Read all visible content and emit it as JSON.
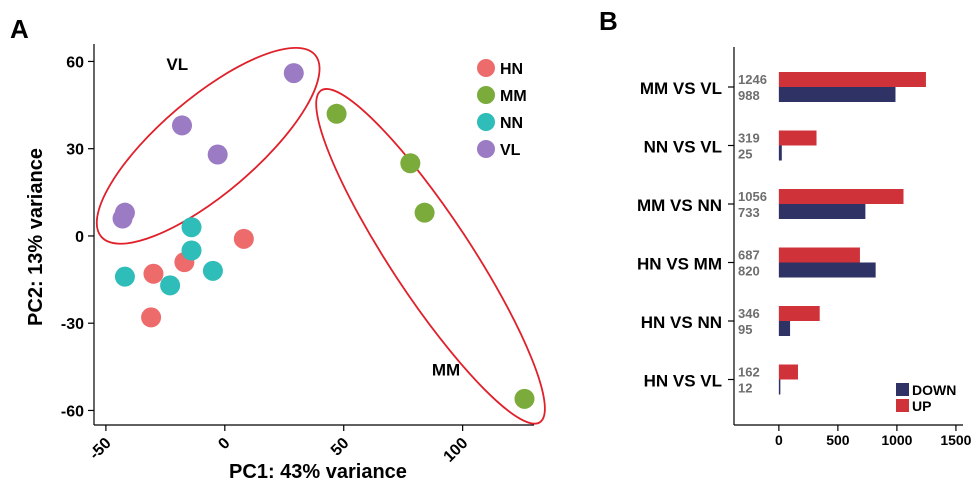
{
  "chart_data": [
    {
      "panel_label": "A",
      "type": "scatter",
      "xlabel": "PC1: 43% variance",
      "ylabel": "PC2: 13% variance",
      "xlim": [
        -55,
        130
      ],
      "ylim": [
        -65,
        66
      ],
      "xticks": [
        -50,
        0,
        50,
        100
      ],
      "yticks": [
        60,
        30,
        0,
        -30,
        -60
      ],
      "legend": [
        {
          "name": "HN",
          "color": "#ee6b6b"
        },
        {
          "name": "MM",
          "color": "#7aab3b"
        },
        {
          "name": "NN",
          "color": "#2ebdb8"
        },
        {
          "name": "VL",
          "color": "#9b7bc3"
        }
      ],
      "series": [
        {
          "name": "HN",
          "points": [
            [
              -30,
              -13
            ],
            [
              -17,
              -9
            ],
            [
              -31,
              -28
            ],
            [
              8,
              -1
            ]
          ]
        },
        {
          "name": "MM",
          "points": [
            [
              47,
              42
            ],
            [
              78,
              25
            ],
            [
              84,
              8
            ],
            [
              126,
              -56
            ]
          ]
        },
        {
          "name": "NN",
          "points": [
            [
              -14,
              3
            ],
            [
              -14,
              -5
            ],
            [
              -5,
              -12
            ],
            [
              -23,
              -17
            ],
            [
              -42,
              -14
            ]
          ]
        },
        {
          "name": "VL",
          "points": [
            [
              29,
              56
            ],
            [
              -18,
              38
            ],
            [
              -3,
              28
            ],
            [
              -42,
              8
            ],
            [
              -43,
              6
            ]
          ]
        }
      ],
      "annotations": [
        {
          "text": "VL",
          "x": -20,
          "y": 57
        },
        {
          "text": "MM",
          "x": 93,
          "y": -48
        }
      ],
      "ellipses": [
        {
          "label": "VL",
          "color": "#e0202a"
        },
        {
          "label": "MM",
          "color": "#e0202a"
        }
      ]
    },
    {
      "panel_label": "B",
      "type": "bar",
      "orientation": "horizontal",
      "categories": [
        "MM VS VL",
        "NN VS VL",
        "MM VS NN",
        "HN VS MM",
        "HN VS NN",
        "HN VS VL"
      ],
      "series": [
        {
          "name": "UP",
          "color": "#cf3339",
          "values": [
            1246,
            319,
            1056,
            687,
            346,
            162
          ]
        },
        {
          "name": "DOWN",
          "color": "#2e3264",
          "values": [
            988,
            25,
            733,
            820,
            95,
            12
          ]
        }
      ],
      "xticks": [
        0,
        500,
        1000,
        1500
      ],
      "xlim": [
        -380,
        1560
      ],
      "legend": [
        "DOWN",
        "UP"
      ],
      "legend_position": "bottom-right"
    }
  ]
}
